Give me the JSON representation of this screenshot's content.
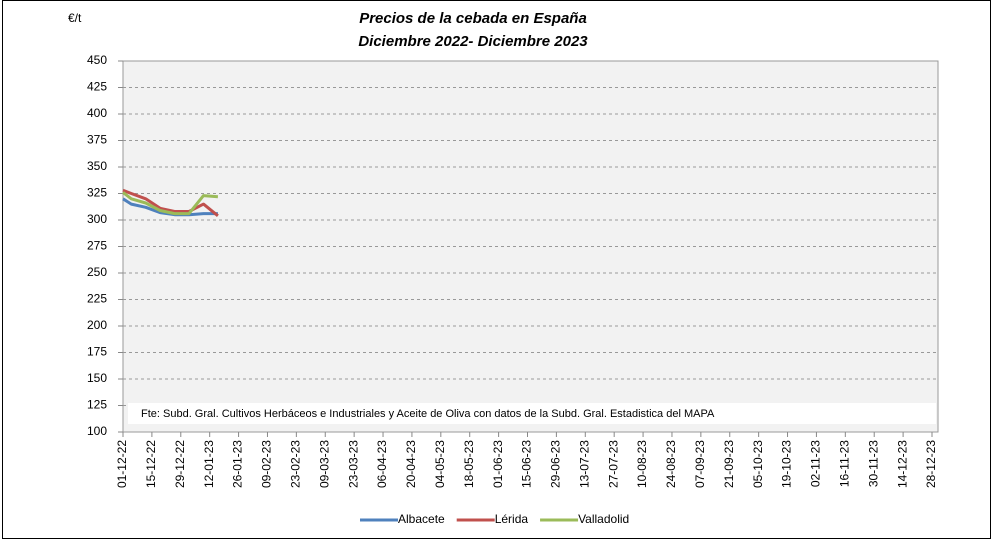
{
  "chart_data": {
    "type": "line",
    "title": "Precios de la cebada en España",
    "subtitle": "Diciembre 2022- Diciembre 2023",
    "y_label": "€/t",
    "annotation": "Fte: Subd. Gral. Cultivos Herbáceos e Industriales y Aceite de Oliva con datos de la Subd. Gral. Estadistica del MAPA",
    "x": [
      "01-12-22",
      "05-12-22",
      "12-12-22",
      "19-12-22",
      "26-12-22",
      "02-01-23",
      "09-01-23",
      "16-01-23"
    ],
    "series": [
      {
        "name": "Albacete",
        "color": "#4f81bd",
        "values": [
          320,
          315,
          312,
          307,
          305,
          305,
          306,
          306
        ]
      },
      {
        "name": "Lérida",
        "color": "#c0504d",
        "values": [
          328,
          325,
          320,
          311,
          308,
          308,
          315,
          304
        ]
      },
      {
        "name": "Valladolid",
        "color": "#9bbb59",
        "values": [
          326,
          320,
          316,
          309,
          306,
          306,
          323,
          322
        ]
      }
    ],
    "xlim": [
      "01-12-22",
      "28-12-23"
    ],
    "xticks": [
      "01-12-22",
      "15-12-22",
      "29-12-22",
      "12-01-23",
      "26-01-23",
      "09-02-23",
      "23-02-23",
      "09-03-23",
      "23-03-23",
      "06-04-23",
      "20-04-23",
      "04-05-23",
      "18-05-23",
      "01-06-23",
      "15-06-23",
      "29-06-23",
      "13-07-23",
      "27-07-23",
      "10-08-23",
      "24-08-23",
      "07-09-23",
      "21-09-23",
      "05-10-23",
      "19-10-23",
      "02-11-23",
      "16-11-23",
      "30-11-23",
      "14-12-23",
      "28-12-23"
    ],
    "ylim": [
      100,
      450
    ],
    "yticks": [
      100,
      125,
      150,
      175,
      200,
      225,
      250,
      275,
      300,
      325,
      350,
      375,
      400,
      425,
      450
    ],
    "grid": true,
    "legend": "bottom"
  }
}
